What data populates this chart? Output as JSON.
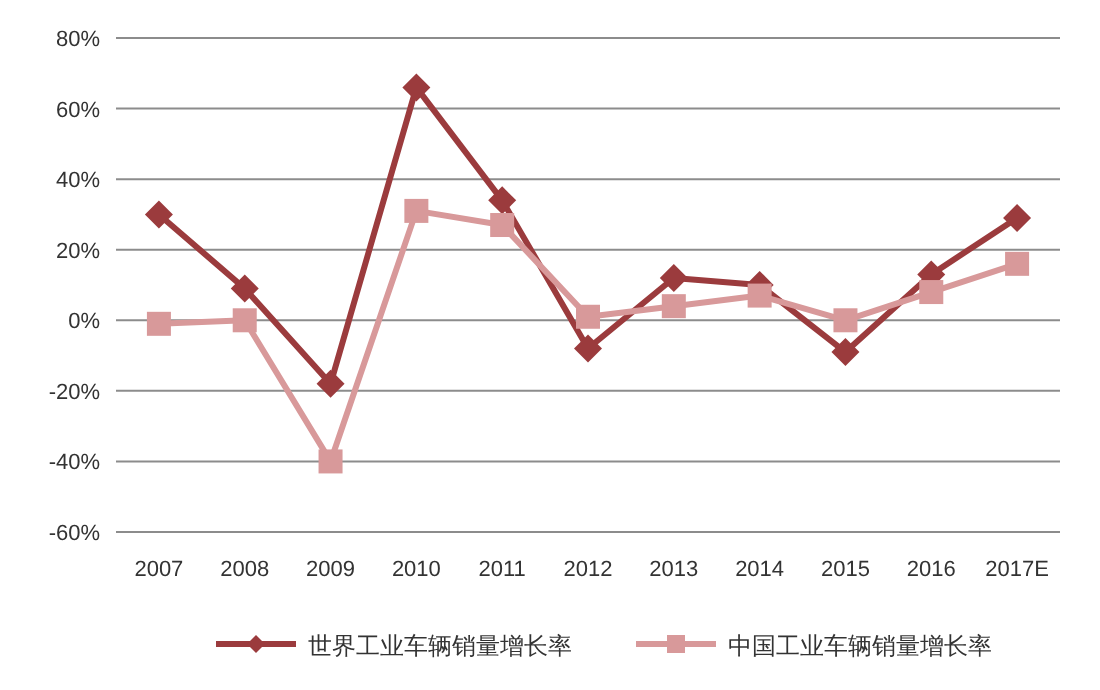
{
  "chart_data": {
    "type": "line",
    "categories": [
      "2007",
      "2008",
      "2009",
      "2010",
      "2011",
      "2012",
      "2013",
      "2014",
      "2015",
      "2016",
      "2017E"
    ],
    "series": [
      {
        "name": "世界工业车辆销量增长率",
        "color": "#9b3b3d",
        "marker": "diamond",
        "values": [
          30,
          9,
          -18,
          66,
          34,
          -8,
          12,
          10,
          -9,
          13,
          29
        ]
      },
      {
        "name": "中国工业车辆销量增长率",
        "color": "#d8999a",
        "marker": "square",
        "values": [
          -1,
          0,
          -40,
          31,
          27,
          1,
          4,
          7,
          0,
          8,
          16
        ]
      }
    ],
    "ylim": [
      -60,
      80
    ],
    "yticks": [
      {
        "value": -60,
        "label": "-60%"
      },
      {
        "value": -40,
        "label": "-40%"
      },
      {
        "value": -20,
        "label": "-20%"
      },
      {
        "value": 0,
        "label": "0%"
      },
      {
        "value": 20,
        "label": "20%"
      },
      {
        "value": 40,
        "label": "40%"
      },
      {
        "value": 60,
        "label": "60%"
      },
      {
        "value": 80,
        "label": "80%"
      }
    ],
    "grid": "y",
    "legend": "bottom",
    "line_style": "solid"
  }
}
